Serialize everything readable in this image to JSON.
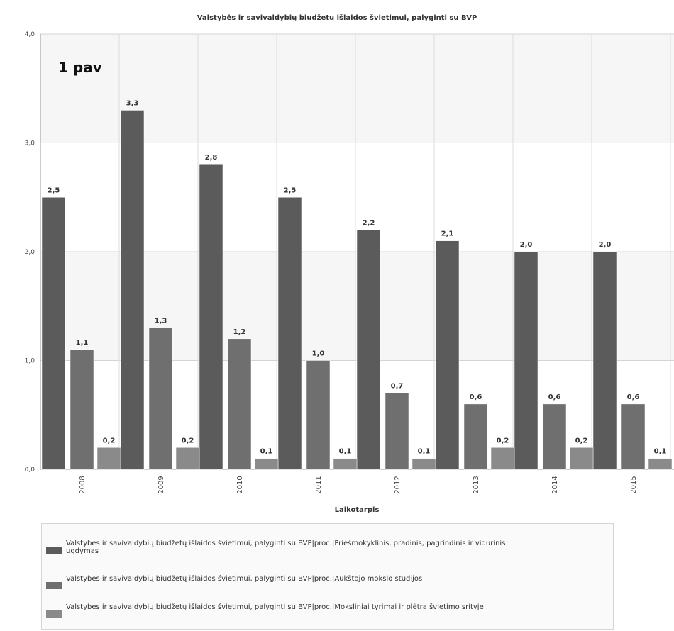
{
  "chart_data": {
    "type": "bar",
    "title": "Valstybės ir savivaldybių biudžetų išlaidos švietimui, palyginti su BVP",
    "annotation": "1 pav",
    "xlabel": "Laikotarpis",
    "ylabel": "",
    "ylim": [
      0,
      4
    ],
    "yticks": [
      "0,0",
      "1,0",
      "2,0",
      "3,0",
      "4,0"
    ],
    "categories": [
      "2008",
      "2009",
      "2010",
      "2011",
      "2012",
      "2013",
      "2014",
      "2015"
    ],
    "grid": true,
    "legend_position": "bottom",
    "series": [
      {
        "name": "Valstybės ir savivaldybių biudžetų išlaidos švietimui, palyginti su BVP|proc.|Priešmokyklinis, pradinis, pagrindinis ir vidurinis ugdymas",
        "color": "#5b5b5b",
        "values": [
          2.5,
          3.3,
          2.8,
          2.5,
          2.2,
          2.1,
          2.0,
          2.0
        ],
        "labels": [
          "2,5",
          "3,3",
          "2,8",
          "2,5",
          "2,2",
          "2,1",
          "2,0",
          "2,0"
        ]
      },
      {
        "name": "Valstybės ir savivaldybių biudžetų išlaidos švietimui, palyginti su BVP|proc.|Aukštojo mokslo studijos",
        "color": "#6f6f6f",
        "values": [
          1.1,
          1.3,
          1.2,
          1.0,
          0.7,
          0.6,
          0.6,
          0.6
        ],
        "labels": [
          "1,1",
          "1,3",
          "1,2",
          "1,0",
          "0,7",
          "0,6",
          "0,6",
          "0,6"
        ]
      },
      {
        "name": "Valstybės ir savivaldybių biudžetų išlaidos švietimui, palyginti su BVP|proc.|Moksliniai tyrimai ir plėtra švietimo srityje",
        "color": "#8a8a8a",
        "values": [
          0.2,
          0.2,
          0.1,
          0.1,
          0.1,
          0.2,
          0.2,
          0.1
        ],
        "labels": [
          "0,2",
          "0,2",
          "0,1",
          "0,1",
          "0,1",
          "0,2",
          "0,2",
          "0,1"
        ]
      }
    ]
  }
}
